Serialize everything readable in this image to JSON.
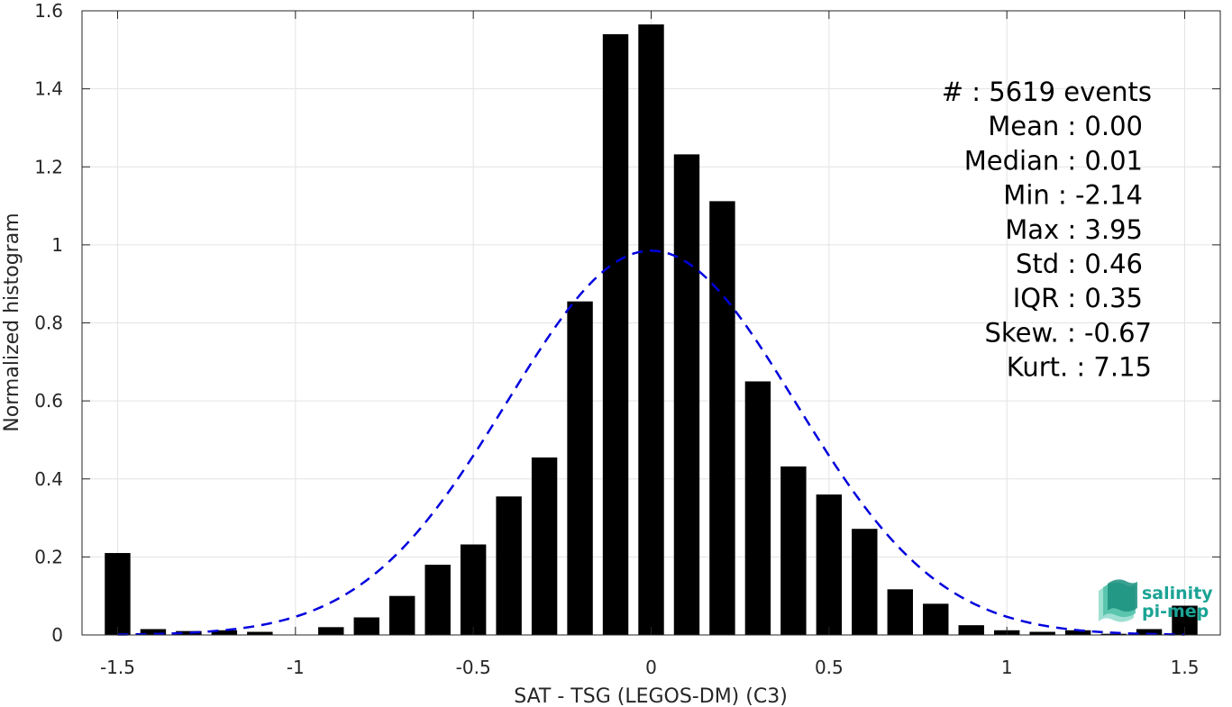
{
  "chart_data": {
    "type": "bar",
    "xlabel": "SAT - TSG (LEGOS-DM) (C3)",
    "ylabel": "Normalized histogram",
    "xlim": [
      -1.6,
      1.6
    ],
    "ylim": [
      0,
      1.6
    ],
    "grid": true,
    "x_ticks": [
      "-1.5",
      "-1",
      "-0.5",
      "0",
      "0.5",
      "1",
      "1.5"
    ],
    "x_tick_values": [
      -1.5,
      -1,
      -0.5,
      0,
      0.5,
      1,
      1.5
    ],
    "y_ticks": [
      "0",
      "0.2",
      "0.4",
      "0.6",
      "0.8",
      "1",
      "1.2",
      "1.4",
      "1.6"
    ],
    "y_tick_values": [
      0,
      0.2,
      0.4,
      0.6,
      0.8,
      1.0,
      1.2,
      1.4,
      1.6
    ],
    "bin_centers": [
      -1.5,
      -1.4,
      -1.3,
      -1.2,
      -1.1,
      -1.0,
      -0.9,
      -0.8,
      -0.7,
      -0.6,
      -0.5,
      -0.4,
      -0.3,
      -0.2,
      -0.1,
      0.0,
      0.1,
      0.2,
      0.3,
      0.4,
      0.5,
      0.6,
      0.7,
      0.8,
      0.9,
      1.0,
      1.1,
      1.2,
      1.3,
      1.4,
      1.5
    ],
    "values": [
      0.21,
      0.015,
      0.01,
      0.012,
      0.008,
      0.0,
      0.02,
      0.045,
      0.1,
      0.18,
      0.232,
      0.355,
      0.455,
      0.855,
      1.54,
      1.565,
      1.232,
      1.112,
      0.65,
      0.432,
      0.36,
      0.272,
      0.117,
      0.08,
      0.025,
      0.012,
      0.008,
      0.012,
      0.003,
      0.015,
      0.075
    ],
    "bar_color": "#000000",
    "fit_curve": {
      "style": "dashed",
      "color": "#0000dd",
      "x_start": -1.5,
      "x_end": 1.5,
      "mean": 0.0,
      "std": 0.405,
      "peak": 0.985
    },
    "stats": [
      {
        "label": "#  ",
        "value": ": 5619 events"
      },
      {
        "label": "Mean ",
        "value": ": 0.00"
      },
      {
        "label": "Median ",
        "value": ": 0.01"
      },
      {
        "label": "Min ",
        "value": ": -2.14"
      },
      {
        "label": "Max ",
        "value": ": 3.95"
      },
      {
        "label": "Std ",
        "value": ": 0.46"
      },
      {
        "label": "IQR ",
        "value": ": 0.35"
      },
      {
        "label": "Skew. ",
        "value": ": -0.67"
      },
      {
        "label": "Kurt. ",
        "value": ": 7.15"
      }
    ]
  },
  "logo": {
    "line1": "salinity",
    "line2": "pi-mep",
    "color": "#1aa394"
  }
}
